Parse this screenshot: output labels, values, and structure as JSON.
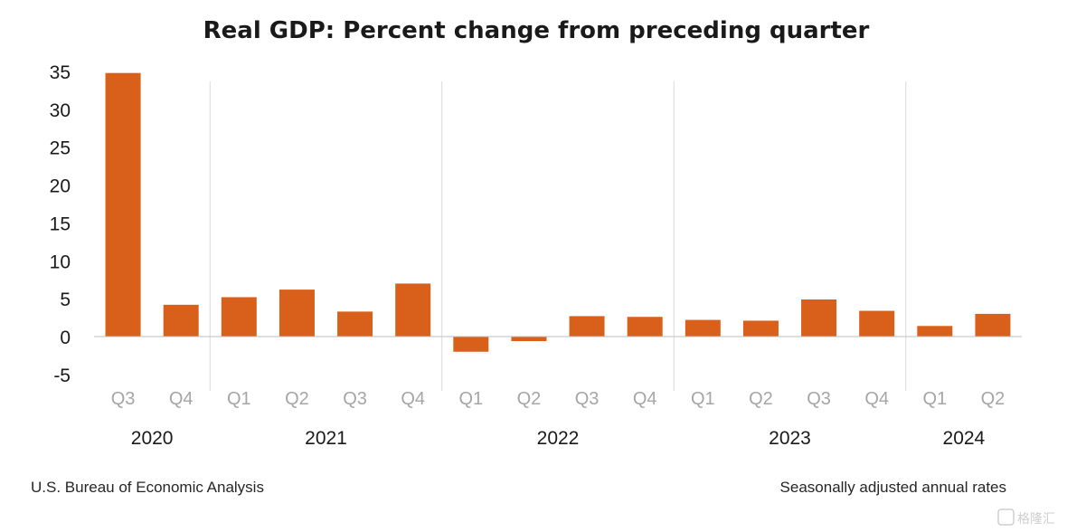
{
  "chart_data": {
    "type": "bar",
    "title": "Real GDP: Percent change from preceding quarter",
    "categories": [
      "Q3",
      "Q4",
      "Q1",
      "Q2",
      "Q3",
      "Q4",
      "Q1",
      "Q2",
      "Q3",
      "Q4",
      "Q1",
      "Q2",
      "Q3",
      "Q4",
      "Q1",
      "Q2"
    ],
    "years": [
      {
        "label": "2020",
        "count": 2
      },
      {
        "label": "2021",
        "count": 4
      },
      {
        "label": "2022",
        "count": 4
      },
      {
        "label": "2023",
        "count": 4
      },
      {
        "label": "2024",
        "count": 2
      }
    ],
    "values": [
      34.8,
      4.2,
      5.2,
      6.2,
      3.3,
      7.0,
      -2.0,
      -0.6,
      2.7,
      2.6,
      2.2,
      2.1,
      4.9,
      3.4,
      1.4,
      3.0
    ],
    "yticks": [
      35,
      30,
      25,
      20,
      15,
      10,
      5,
      0,
      -5
    ],
    "ylim": [
      -5,
      35
    ],
    "xlabel": "",
    "ylabel": "",
    "bar_color": "#d9601b",
    "grid": false
  },
  "footer": {
    "source": "U.S. Bureau of Economic Analysis",
    "note": "Seasonally adjusted annual rates"
  },
  "watermark": "格隆汇"
}
